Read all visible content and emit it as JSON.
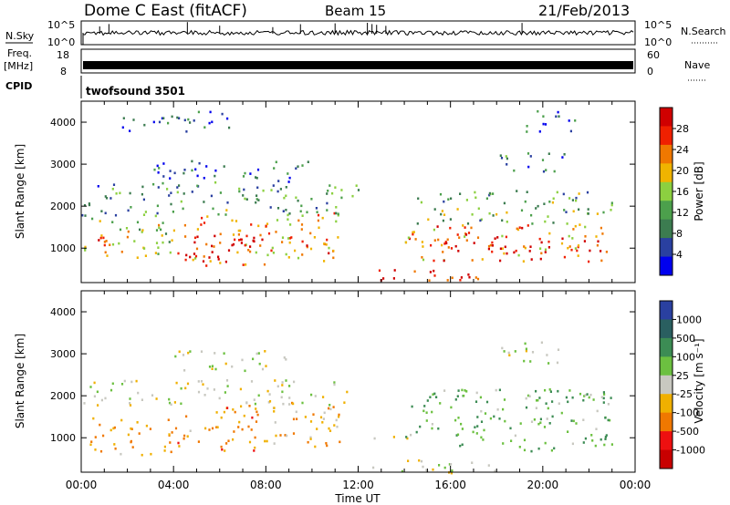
{
  "header": {
    "station": "Dome C East (fitACF)",
    "beam": "Beam 15",
    "date": "21/Feb/2013"
  },
  "params": {
    "nsky_label": "N.Sky",
    "nsearch_label": "N.Search",
    "freq_label": "Freq.",
    "freq_unit": "[MHz]",
    "nave_label": "Nave",
    "cpid_label": "CPID",
    "cpid_value": "twofsound 3501",
    "noise_ticks": [
      "10^5",
      "10^0"
    ],
    "freq_ticks": [
      "18",
      "8"
    ],
    "nave_ticks": [
      "60",
      "0"
    ]
  },
  "colors": {
    "power": [
      "#0000ee",
      "#2a40a0",
      "#3c7c50",
      "#4ca04c",
      "#8cd040",
      "#f0b400",
      "#f07800",
      "#f02000",
      "#d00000"
    ],
    "velocity": [
      "#2a40a0",
      "#2a5f60",
      "#3c8c54",
      "#6cc040",
      "#c8c8c0",
      "#f0b000",
      "#f07800",
      "#ee1010",
      "#c80000"
    ],
    "trace": "#000000"
  },
  "chart_data": [
    {
      "type": "heatmap",
      "panel": "power",
      "ylabel": "Slant Range [km]",
      "y_ticks": [
        1000,
        2000,
        3000,
        4000
      ],
      "ylim": [
        180,
        4500
      ],
      "xlim": [
        "00:00",
        "24:00"
      ],
      "colorbar": {
        "label": "Power [dB]",
        "ticks": [
          "4",
          "8",
          "12",
          "16",
          "20",
          "24",
          "28"
        ],
        "range": [
          0,
          30
        ]
      },
      "regions": [
        {
          "t": [
            0.1,
            4.0
          ],
          "r": [
            700,
            1800
          ],
          "v": 16
        },
        {
          "t": [
            0.6,
            1.6
          ],
          "r": [
            1000,
            1400
          ],
          "v": 26
        },
        {
          "t": [
            4.0,
            8.0
          ],
          "r": [
            600,
            1800
          ],
          "v": 22
        },
        {
          "t": [
            4.5,
            7.5
          ],
          "r": [
            800,
            1400
          ],
          "v": 28
        },
        {
          "t": [
            8.0,
            11.2
          ],
          "r": [
            700,
            1900
          ],
          "v": 20
        },
        {
          "t": [
            9.0,
            11.0
          ],
          "r": [
            900,
            1300
          ],
          "v": 26
        },
        {
          "t": [
            0.0,
            12.0
          ],
          "r": [
            1800,
            2600
          ],
          "v": 10
        },
        {
          "t": [
            3.0,
            10.0
          ],
          "r": [
            2600,
            3100
          ],
          "v": 6
        },
        {
          "t": [
            1.5,
            6.5
          ],
          "r": [
            3800,
            4300
          ],
          "v": 5
        },
        {
          "t": [
            12.5,
            17.5
          ],
          "r": [
            180,
            520
          ],
          "v": 27
        },
        {
          "t": [
            14.0,
            23.0
          ],
          "r": [
            700,
            1600
          ],
          "v": 22
        },
        {
          "t": [
            15.0,
            22.0
          ],
          "r": [
            900,
            1300
          ],
          "v": 27
        },
        {
          "t": [
            14.5,
            23.0
          ],
          "r": [
            1600,
            2400
          ],
          "v": 12
        },
        {
          "t": [
            18.0,
            21.0
          ],
          "r": [
            2800,
            3300
          ],
          "v": 9
        },
        {
          "t": [
            19.0,
            21.5
          ],
          "r": [
            3800,
            4300
          ],
          "v": 6
        }
      ]
    },
    {
      "type": "heatmap",
      "panel": "velocity",
      "ylabel": "Slant Range [km]",
      "xlabel": "Time UT",
      "x_ticks": [
        "00:00",
        "04:00",
        "08:00",
        "12:00",
        "16:00",
        "20:00",
        "00:00"
      ],
      "y_ticks": [
        1000,
        2000,
        3000,
        4000
      ],
      "ylim": [
        180,
        4500
      ],
      "xlim": [
        "00:00",
        "24:00"
      ],
      "colorbar": {
        "label": "Velocity [m s⁻¹]",
        "ticks": [
          "1000",
          "500",
          "100",
          "25",
          "-25",
          "-100",
          "-500",
          "-1000"
        ],
        "range": [
          -1000,
          1000
        ]
      },
      "regions": [
        {
          "t": [
            0.3,
            4.0
          ],
          "r": [
            600,
            1500
          ],
          "v": -300
        },
        {
          "t": [
            4.0,
            8.0
          ],
          "r": [
            700,
            1800
          ],
          "v": -350
        },
        {
          "t": [
            8.0,
            11.5
          ],
          "r": [
            800,
            1900
          ],
          "v": -250
        },
        {
          "t": [
            0.0,
            11.5
          ],
          "r": [
            1800,
            2400
          ],
          "v": 0
        },
        {
          "t": [
            4.0,
            9.0
          ],
          "r": [
            2600,
            3100
          ],
          "v": 0
        },
        {
          "t": [
            12.5,
            14.5
          ],
          "r": [
            900,
            1100
          ],
          "v": 0
        },
        {
          "t": [
            14.0,
            23.0
          ],
          "r": [
            700,
            2200
          ],
          "v": 300
        },
        {
          "t": [
            12.5,
            18.0
          ],
          "r": [
            180,
            500
          ],
          "v": 60
        },
        {
          "t": [
            18.0,
            21.0
          ],
          "r": [
            2800,
            3300
          ],
          "v": 60
        }
      ]
    }
  ],
  "x_axis": {
    "ticks": [
      "00:00",
      "04:00",
      "08:00",
      "12:00",
      "16:00",
      "20:00",
      "00:00"
    ],
    "label": "Time UT"
  }
}
